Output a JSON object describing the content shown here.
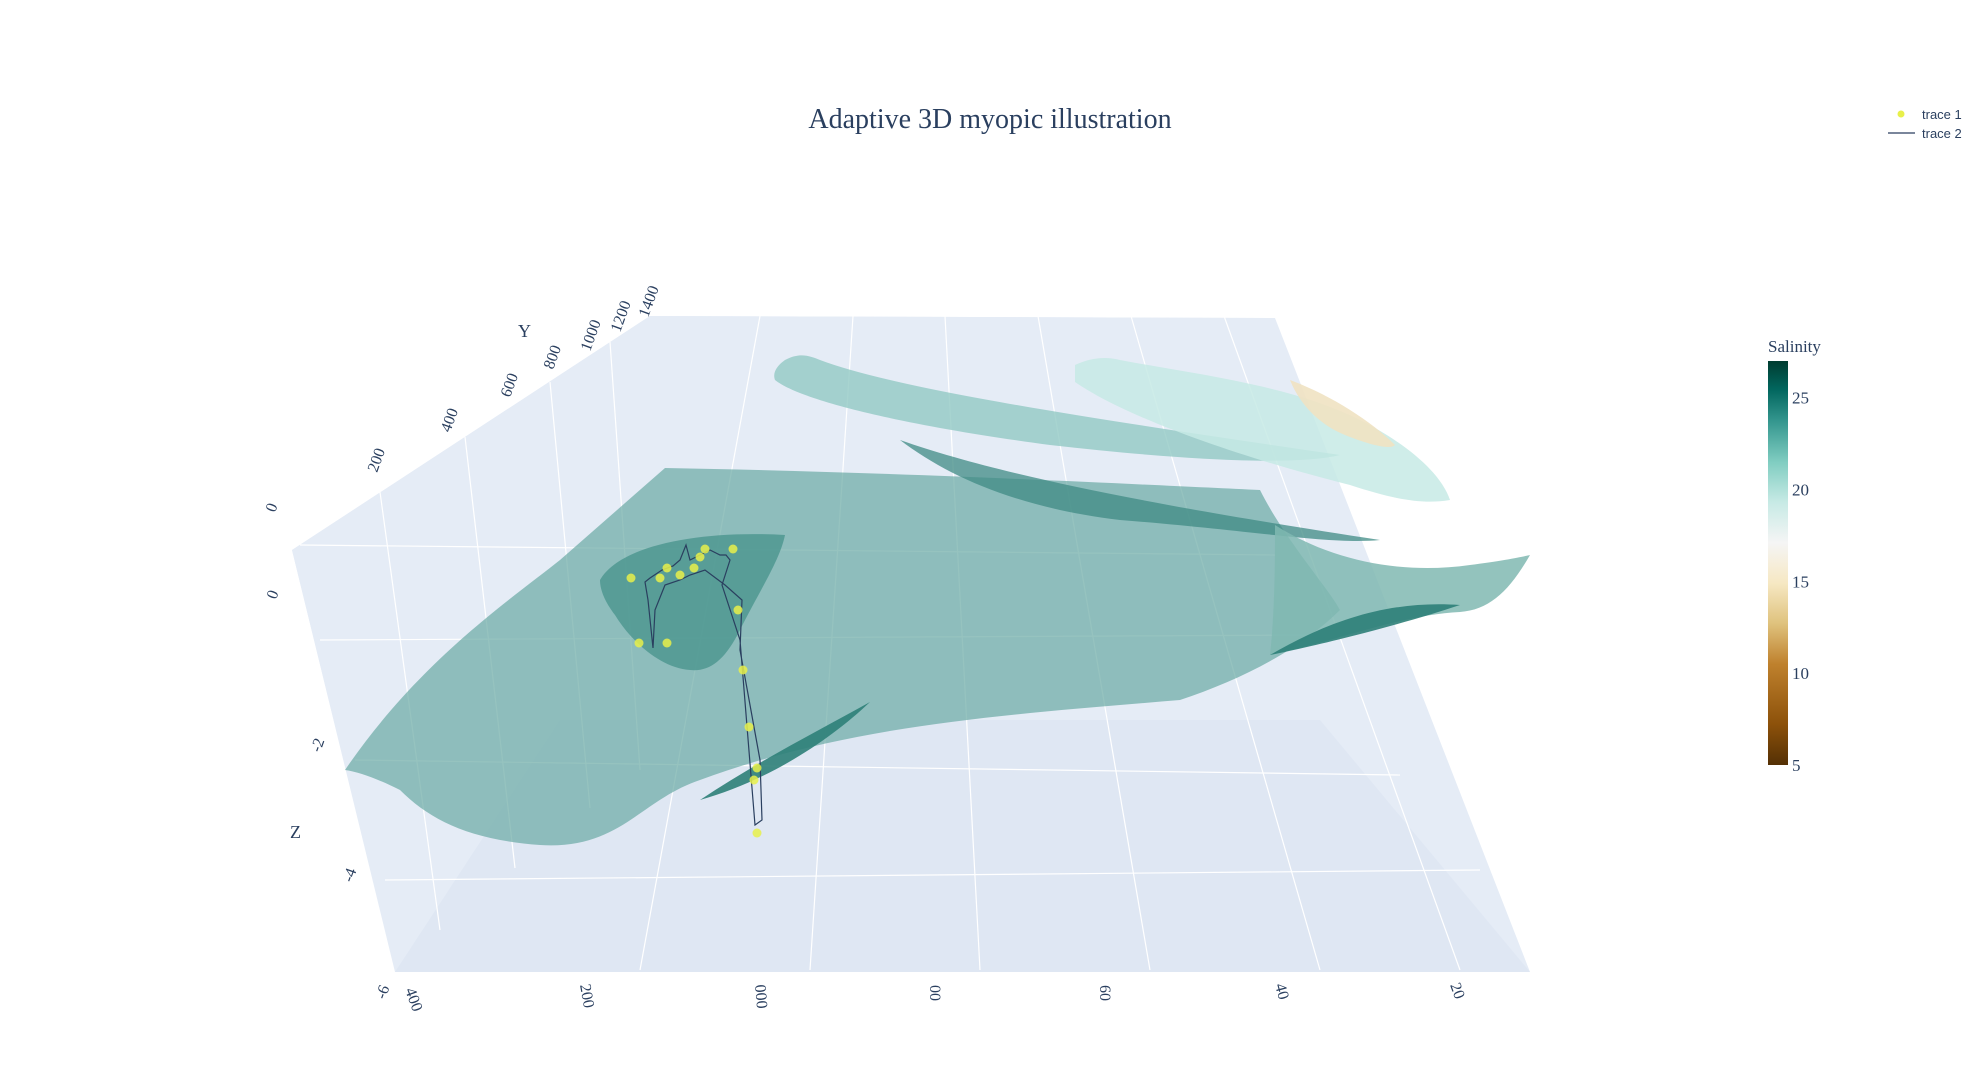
{
  "chart_data": {
    "type": "3d-surface-scatter",
    "title": "Adaptive 3D myopic illustration",
    "scene": {
      "x_ticks": [
        "400",
        "200",
        "000",
        "00",
        "60",
        "40",
        "20"
      ],
      "y_title": "Y",
      "y_ticks": [
        "0",
        "200",
        "400",
        "600",
        "800",
        "1000",
        "1200",
        "1400"
      ],
      "z_title": "Z",
      "z_ticks": [
        "0",
        "-2",
        "-4",
        "-6"
      ]
    },
    "legend": {
      "placement": "top-right",
      "entries": [
        {
          "name": "trace 1",
          "kind": "markers",
          "color": "#e8f04a"
        },
        {
          "name": "trace 2",
          "kind": "line",
          "color": "#2a3f5f"
        }
      ]
    },
    "colorbar": {
      "title": "Salinity",
      "range": [
        5,
        27
      ],
      "ticks": [
        "25",
        "20",
        "15",
        "10",
        "5"
      ],
      "tick_values": [
        25,
        20,
        15,
        10,
        5
      ],
      "colorscale": [
        "#543005",
        "#8c510a",
        "#bf812d",
        "#dfc27d",
        "#f6e8c3",
        "#f5f5f5",
        "#c7eae5",
        "#80cdc1",
        "#35978f",
        "#01665e",
        "#003c30"
      ]
    },
    "colors": {
      "scene_bg": "#e5ecf6",
      "grid": "#ffffff",
      "surface": "#5fa39c",
      "marker": "#e8f04a",
      "line": "#2a3f5f"
    }
  }
}
